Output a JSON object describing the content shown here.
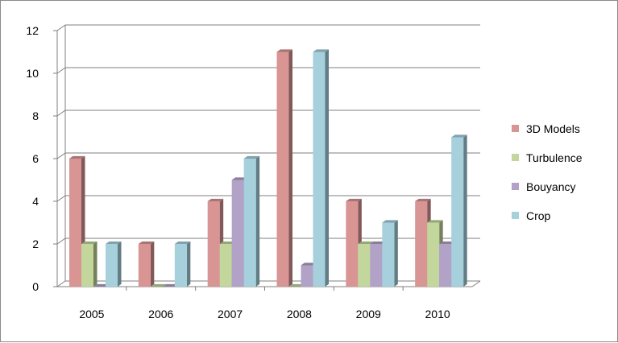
{
  "chart_data": {
    "type": "bar",
    "title": "",
    "xlabel": "",
    "ylabel": "",
    "categories": [
      "2005",
      "2006",
      "2007",
      "2008",
      "2009",
      "2010"
    ],
    "series": [
      {
        "name": "3D Models",
        "color": "#d99594",
        "values": [
          6,
          2,
          4,
          11,
          4,
          4
        ]
      },
      {
        "name": "Turbulence",
        "color": "#c3d69b",
        "values": [
          2,
          0,
          2,
          0,
          2,
          3
        ]
      },
      {
        "name": "Bouyancy",
        "color": "#b2a2c7",
        "values": [
          0,
          0,
          5,
          1,
          2,
          2
        ]
      },
      {
        "name": "Crop",
        "color": "#a5d0dc",
        "values": [
          2,
          2,
          6,
          11,
          3,
          7
        ]
      }
    ],
    "ylim": [
      0,
      12
    ],
    "yticks": [
      "0",
      "2",
      "4",
      "6",
      "8",
      "10",
      "12"
    ],
    "grid": true,
    "legend_position": "right",
    "style": "3d-columns"
  }
}
